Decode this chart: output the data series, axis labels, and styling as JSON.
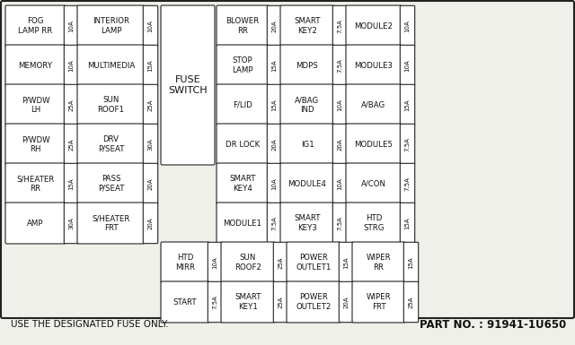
{
  "bg_color": "#f0f0eb",
  "border_color": "#222222",
  "cell_bg": "#ffffff",
  "text_color": "#111111",
  "footer_text1": "USE THE DESIGNATED FUSE ONLY.",
  "footer_text2": "PART NO. : 91941-1U650",
  "fuse_switch_label": "FUSE\nSWITCH",
  "left_section": [
    [
      "FOG\nLAMP RR",
      "10A",
      "INTERIOR\nLAMP",
      "10A"
    ],
    [
      "MEMORY",
      "10A",
      "MULTIMEDIA",
      "15A"
    ],
    [
      "P/WDW\nLH",
      "25A",
      "SUN\nROOF1",
      "25A"
    ],
    [
      "P/WDW\nRH",
      "25A",
      "DRV\nP/SEAT",
      "30A"
    ],
    [
      "S/HEATER\nRR",
      "15A",
      "PASS\nP/SEAT",
      "20A"
    ],
    [
      "AMP",
      "30A",
      "S/HEATER\nFRT",
      "20A"
    ]
  ],
  "right_main": [
    [
      "BLOWER\nRR",
      "20A",
      "SMART\nKEY2",
      "7.5A",
      "MODULE2",
      "10A"
    ],
    [
      "STOP\nLAMP",
      "15A",
      "MDPS",
      "7.5A",
      "MODULE3",
      "10A"
    ],
    [
      "F/LID",
      "15A",
      "A/BAG\nIND",
      "10A",
      "A/BAG",
      "15A"
    ],
    [
      "DR LOCK",
      "20A",
      "IG1",
      "20A",
      "MODULE5",
      "7.5A"
    ],
    [
      "SMART\nKEY4",
      "10A",
      "MODULE4",
      "10A",
      "A/CON",
      "7.5A"
    ],
    [
      "MODULE1",
      "7.5A",
      "SMART\nKEY3",
      "7.5A",
      "HTD\nSTRG",
      "15A"
    ]
  ],
  "right_bottom": [
    [
      "HTD\nMIRR",
      "10A",
      "SUN\nROOF2",
      "25A",
      "POWER\nOUTLET1",
      "15A",
      "WIPER\nRR",
      "15A"
    ],
    [
      "START",
      "7.5A",
      "SMART\nKEY1",
      "25A",
      "POWER\nOUTLET2",
      "20A",
      "WIPER\nFRT",
      "25A"
    ]
  ]
}
